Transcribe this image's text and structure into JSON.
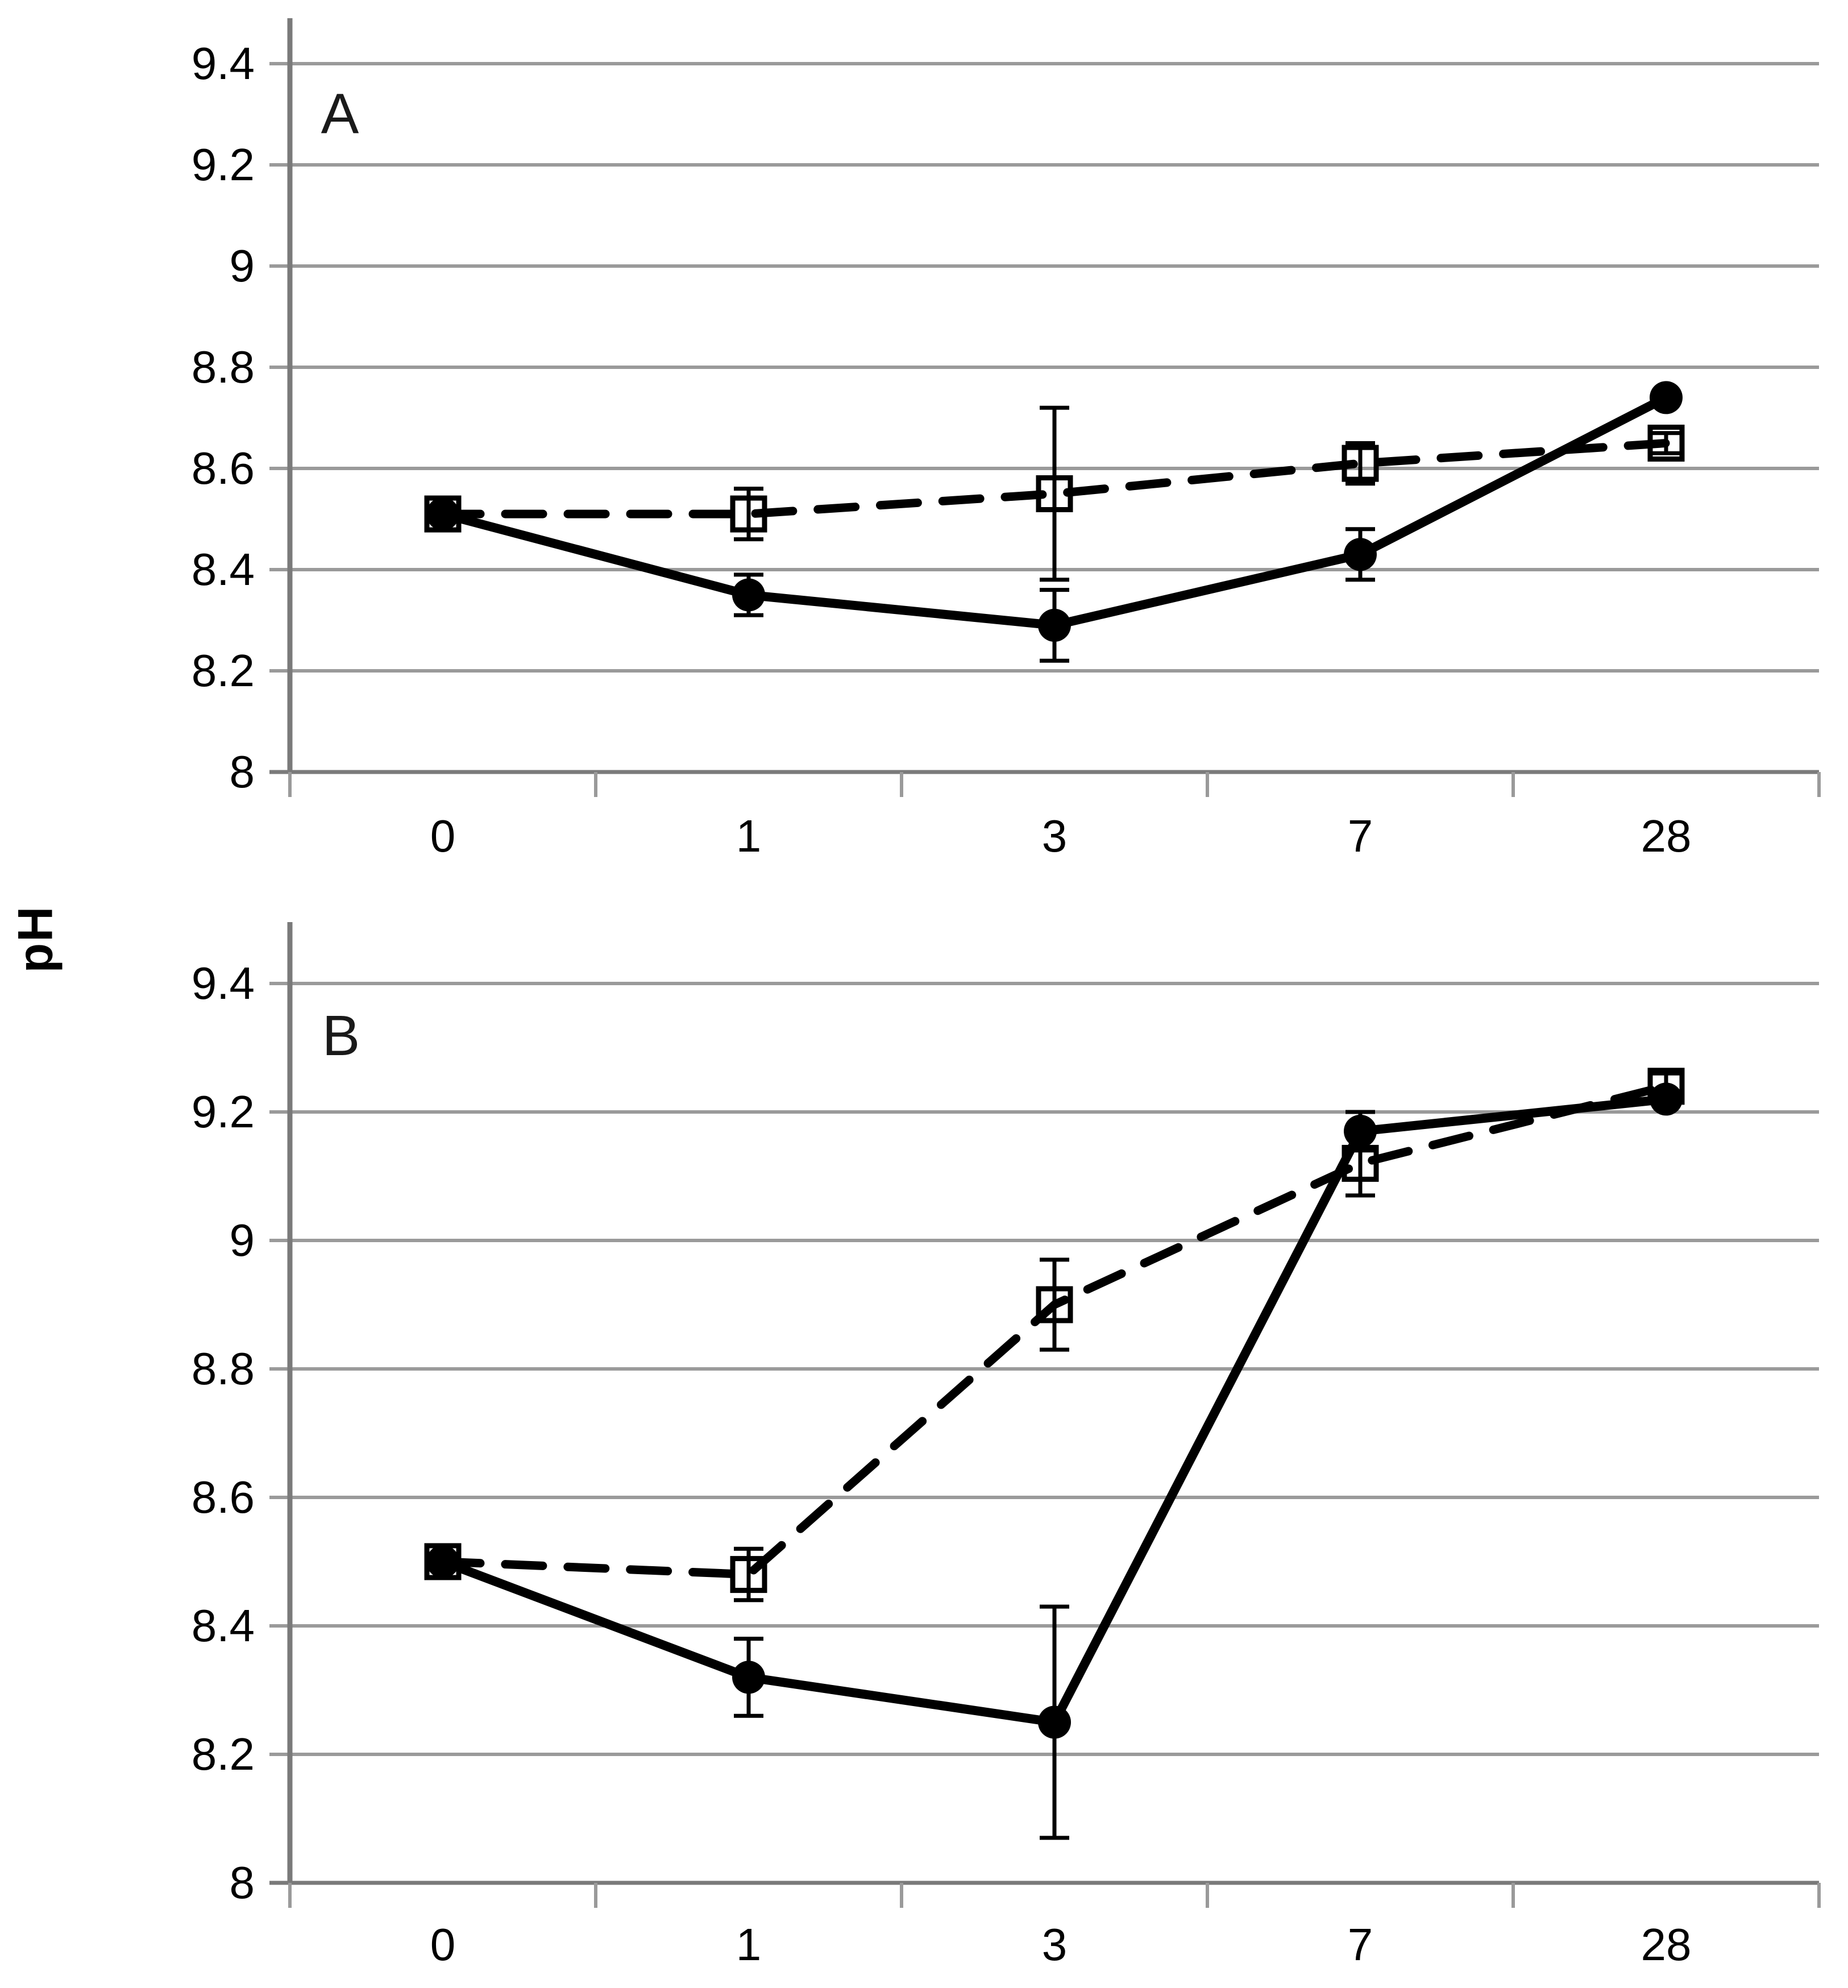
{
  "figure": {
    "ylabel": "pH",
    "colors": {
      "background": "#ffffff",
      "grid": "#9a9a9a",
      "axis": "#7a7a7a",
      "data": "#000000",
      "text": "#000000"
    }
  },
  "chart_data": [
    {
      "type": "line",
      "panel_label": "A",
      "categories": [
        "0",
        "1",
        "3",
        "7",
        "28"
      ],
      "ytick_labels": [
        "9.4",
        "9.2",
        "9",
        "8.8",
        "8.6",
        "8.4",
        "8.2",
        "8"
      ],
      "ylim": [
        8.0,
        9.4
      ],
      "grid": true,
      "legend": "none",
      "series": [
        {
          "name": "solid line, filled circles",
          "marker": "filled-circle",
          "line_style": "solid",
          "values": [
            8.51,
            8.35,
            8.29,
            8.43,
            8.74
          ],
          "error": [
            0,
            0.04,
            0.07,
            0.05,
            0
          ]
        },
        {
          "name": "dashed line, open squares",
          "marker": "open-square",
          "line_style": "dashed",
          "values": [
            8.51,
            8.51,
            8.55,
            8.61,
            8.65
          ],
          "error": [
            0,
            0.05,
            0.17,
            0.04,
            0.02
          ]
        }
      ]
    },
    {
      "type": "line",
      "panel_label": "B",
      "categories": [
        "0",
        "1",
        "3",
        "7",
        "28"
      ],
      "ytick_labels": [
        "9.4",
        "9.2",
        "9",
        "8.8",
        "8.6",
        "8.4",
        "8.2",
        "8"
      ],
      "ylim": [
        8.0,
        9.4
      ],
      "grid": true,
      "legend": "none",
      "series": [
        {
          "name": "solid line, filled circles",
          "marker": "filled-circle",
          "line_style": "solid",
          "values": [
            8.5,
            8.32,
            8.25,
            9.17,
            9.22
          ],
          "error": [
            0,
            0.06,
            0.18,
            0.03,
            0
          ]
        },
        {
          "name": "dashed line, open squares",
          "marker": "open-square",
          "line_style": "dashed",
          "values": [
            8.5,
            8.48,
            8.9,
            9.12,
            9.24
          ],
          "error": [
            0,
            0.04,
            0.07,
            0.05,
            0.02
          ]
        }
      ]
    }
  ]
}
